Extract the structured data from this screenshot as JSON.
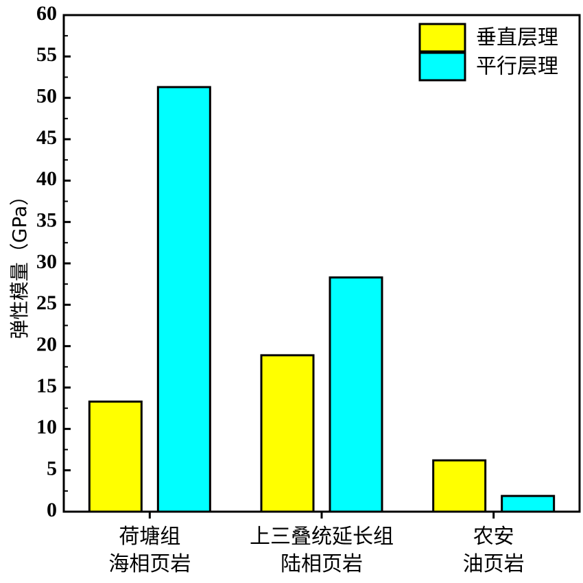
{
  "chart_data": {
    "type": "bar",
    "ylabel": "弹性模量（GPa）",
    "ylim": [
      0,
      60
    ],
    "yticks": [
      0,
      5,
      10,
      15,
      20,
      25,
      30,
      35,
      40,
      45,
      50,
      55,
      60
    ],
    "categories": [
      [
        "荷塘组",
        "海相页岩"
      ],
      [
        "上三叠统延长组",
        "陆相页岩"
      ],
      [
        "农安",
        "油页岩"
      ]
    ],
    "series": [
      {
        "name": "垂直层理",
        "color": "#ffff00",
        "values": [
          13.3,
          18.9,
          6.2
        ]
      },
      {
        "name": "平行层理",
        "color": "#00ffff",
        "values": [
          51.3,
          28.3,
          1.9
        ]
      }
    ],
    "legend": "top-right",
    "grid": false
  }
}
